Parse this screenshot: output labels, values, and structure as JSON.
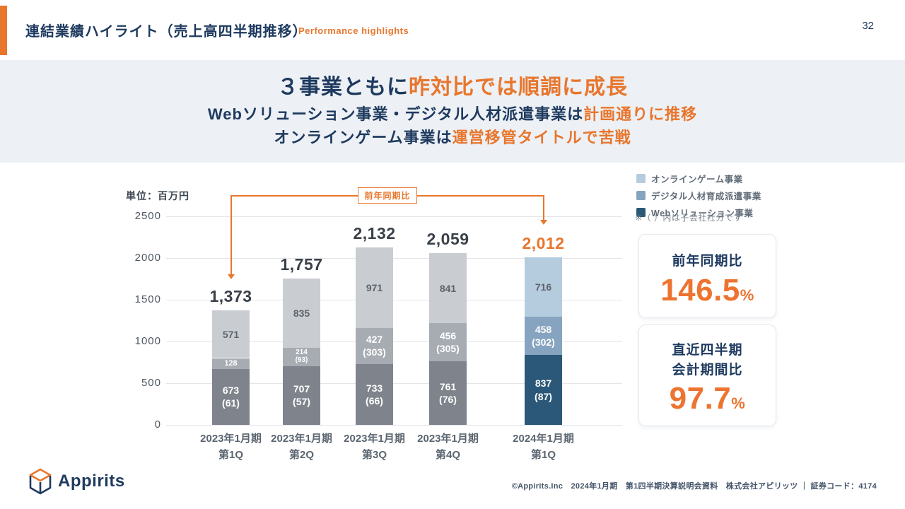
{
  "page": {
    "number": "32"
  },
  "header": {
    "title": "連結業績ハイライト（売上高四半期推移）",
    "subtitle": "Performance highlights"
  },
  "banner": {
    "line1_dark": "３事業ともに",
    "line1_accent": "昨対比では順調に成長",
    "line2_dark": "Webソリューション事業・デジタル人材派遣事業は",
    "line2_accent": "計画通りに推移",
    "line3_dark": "オンラインゲーム事業は",
    "line3_accent": "運営移管タイトルで苦戦"
  },
  "colors": {
    "accent_orange": "#E8762D",
    "navy": "#1E3A5F",
    "banner_bg": "#EDF0F4",
    "gridline": "#E2E5E9"
  },
  "chart_data": {
    "type": "bar",
    "subtype": "stacked",
    "unit_label": "単位：百万円",
    "ylim": [
      0,
      2500
    ],
    "yticks": [
      0,
      500,
      1000,
      1500,
      2000,
      2500
    ],
    "grid": "horizontal",
    "callout_label": "前年同期比",
    "series_order_bottom_to_top": [
      "web",
      "digital",
      "game"
    ],
    "palettes": {
      "past": {
        "web": "#7F848C",
        "digital": "#A7ACB3",
        "game": "#C9CDD2"
      },
      "current": {
        "web": "#2B5878",
        "digital": "#86A4C0",
        "game": "#B5CBDE"
      }
    },
    "label_colors": {
      "on_dark": "#FFFFFF",
      "on_light": "#5C646D"
    },
    "bars": [
      {
        "period": "2023年1月期",
        "quarter": "第1Q",
        "total": "1,373",
        "total_highlight": false,
        "palette": "past",
        "segments": [
          {
            "series": "web",
            "value": 673,
            "label": "673\n(61)"
          },
          {
            "series": "digital",
            "value": 128,
            "label": "128"
          },
          {
            "series": "game",
            "value": 571,
            "label": "571"
          }
        ]
      },
      {
        "period": "2023年1月期",
        "quarter": "第2Q",
        "total": "1,757",
        "total_highlight": false,
        "palette": "past",
        "segments": [
          {
            "series": "web",
            "value": 707,
            "label": "707\n(57)"
          },
          {
            "series": "digital",
            "value": 214,
            "label": "214\n(93)"
          },
          {
            "series": "game",
            "value": 835,
            "label": "835"
          }
        ]
      },
      {
        "period": "2023年1月期",
        "quarter": "第3Q",
        "total": "2,132",
        "total_highlight": false,
        "palette": "past",
        "segments": [
          {
            "series": "web",
            "value": 733,
            "label": "733\n(66)"
          },
          {
            "series": "digital",
            "value": 427,
            "label": "427\n(303)"
          },
          {
            "series": "game",
            "value": 971,
            "label": "971"
          }
        ]
      },
      {
        "period": "2023年1月期",
        "quarter": "第4Q",
        "total": "2,059",
        "total_highlight": false,
        "palette": "past",
        "segments": [
          {
            "series": "web",
            "value": 761,
            "label": "761\n(76)"
          },
          {
            "series": "digital",
            "value": 456,
            "label": "456\n(305)"
          },
          {
            "series": "game",
            "value": 841,
            "label": "841"
          }
        ]
      },
      {
        "period": "2024年1月期",
        "quarter": "第1Q",
        "total": "2,012",
        "total_highlight": true,
        "palette": "current",
        "segments": [
          {
            "series": "web",
            "value": 837,
            "label": "837\n(87)"
          },
          {
            "series": "digital",
            "value": 458,
            "label": "458\n(302)"
          },
          {
            "series": "game",
            "value": 716,
            "label": "716"
          }
        ]
      }
    ]
  },
  "legend": {
    "items": [
      {
        "label": "オンラインゲーム事業",
        "color": "#B5CBDE"
      },
      {
        "label": "デジタル人材育成派遣事業",
        "color": "#86A4C0"
      },
      {
        "label": "Webソリューション事業",
        "color": "#2B5878"
      }
    ],
    "note": "※（ ）内は子会社社分です"
  },
  "kpi_cards": [
    {
      "title": "前年同期比",
      "value": "146.5",
      "unit": "%"
    },
    {
      "title_line1": "直近四半期",
      "title_line2": "会計期間比",
      "value": "97.7",
      "unit": "%"
    }
  ],
  "footer": {
    "logo_text": "Appirits",
    "copyright": "©Appirits.Inc　2024年1月期　第1四半期決算説明会資料　株式会社アピリッツ ｜ 証券コード：4174"
  }
}
